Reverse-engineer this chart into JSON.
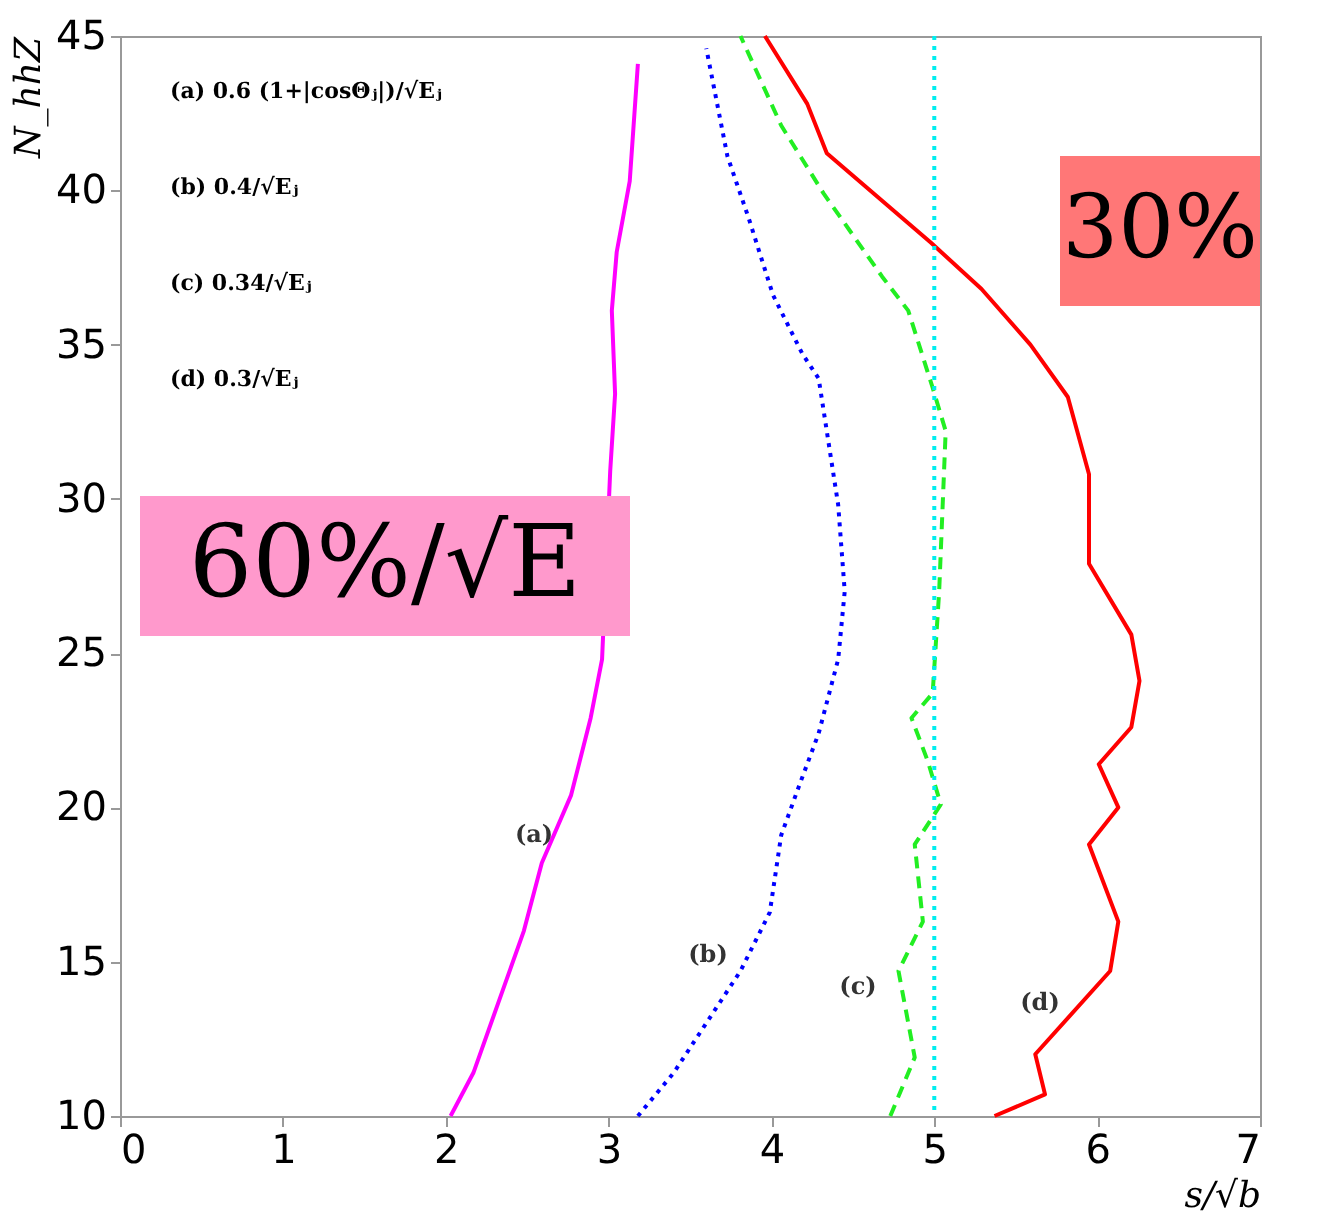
{
  "chart_data": {
    "type": "line",
    "xlabel": "s/√b",
    "ylabel": "N_hhZ",
    "xlim": [
      0,
      7
    ],
    "ylim": [
      10,
      45
    ],
    "xticks": [
      0,
      1,
      2,
      3,
      4,
      5,
      6,
      7
    ],
    "yticks": [
      10,
      15,
      20,
      25,
      30,
      35,
      40,
      45
    ],
    "grid": false,
    "series": [
      {
        "color": "#ff00ff",
        "line_style": "solid",
        "x": [
          2.03,
          2.17,
          2.48,
          2.59,
          2.77,
          2.89,
          2.96,
          3.01,
          3.04,
          3.02,
          3.05,
          3.13,
          3.18
        ],
        "values": [
          10,
          11.4,
          16.0,
          18.2,
          20.4,
          22.9,
          24.8,
          30.9,
          33.4,
          36.1,
          38.0,
          40.3,
          44.1
        ]
      },
      {
        "color": "#0000ff",
        "line_style": "dotted",
        "x": [
          3.18,
          3.4,
          3.81,
          3.99,
          4.06,
          4.17,
          4.29,
          4.41,
          4.45,
          4.41,
          4.29,
          4.19,
          4.01,
          3.86,
          3.73,
          3.6
        ],
        "values": [
          10,
          11.4,
          14.7,
          16.6,
          19.1,
          20.7,
          22.4,
          24.8,
          27.0,
          29.8,
          33.9,
          34.7,
          36.6,
          39.1,
          41.1,
          44.6
        ]
      },
      {
        "color": "#22ee22",
        "line_style": "dashed",
        "x": [
          4.73,
          4.88,
          4.78,
          4.93,
          4.88,
          5.04,
          4.96,
          4.86,
          4.99,
          5.03,
          5.07,
          4.99,
          4.84,
          4.68,
          4.32,
          4.06,
          3.81
        ],
        "values": [
          10,
          11.9,
          14.7,
          16.3,
          18.8,
          20.1,
          21.5,
          22.9,
          23.7,
          27.0,
          32.2,
          33.6,
          36.1,
          37.2,
          39.9,
          42.1,
          45
        ]
      },
      {
        "color": "#ff0000",
        "line_style": "solid",
        "x": [
          5.37,
          5.68,
          5.62,
          6.08,
          6.13,
          5.95,
          6.13,
          6.01,
          6.21,
          6.26,
          6.21,
          5.95,
          5.95,
          5.82,
          5.59,
          5.29,
          4.98,
          4.34,
          4.22,
          3.96
        ],
        "values": [
          10,
          10.7,
          12.0,
          14.7,
          16.3,
          18.8,
          20.0,
          21.4,
          22.6,
          24.1,
          25.6,
          27.9,
          30.8,
          33.3,
          35.0,
          36.8,
          38.3,
          41.2,
          42.8,
          45
        ]
      }
    ],
    "ref_lines": [
      {
        "axis": "x",
        "value": 5,
        "color": "#00eeee",
        "line_style": "dotted"
      }
    ],
    "annotations": [
      "(a)  0.6 (1+|cosΘⱼ|)/√Eⱼ",
      "(b)  0.4/√Eⱼ",
      "(c)  0.34/√Eⱼ",
      "(d)  0.3/√Eⱼ",
      "60%/√E",
      "30%",
      "(a)",
      "(b)",
      "(c)",
      "(d)"
    ]
  }
}
